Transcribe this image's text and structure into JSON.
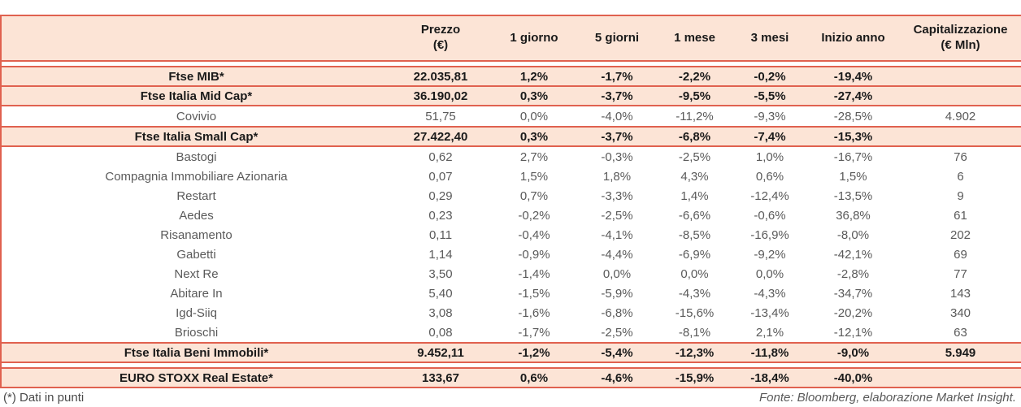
{
  "colors": {
    "row_fill": "#fce4d6",
    "line": "#e0614f",
    "index_text": "#1a1a1a",
    "stock_text": "#5a5a5a"
  },
  "table": {
    "columns": [
      {
        "label": ""
      },
      {
        "label": "Prezzo\n(€)"
      },
      {
        "label": "1 giorno"
      },
      {
        "label": "5 giorni"
      },
      {
        "label": "1 mese"
      },
      {
        "label": "3 mesi"
      },
      {
        "label": "Inizio anno"
      },
      {
        "label": "Capitalizzazione\n(€ Mln)"
      }
    ],
    "rows": [
      {
        "type": "index",
        "label": "Ftse MIB*",
        "values": [
          "22.035,81",
          "1,2%",
          "-1,7%",
          "-2,2%",
          "-0,2%",
          "-19,4%",
          ""
        ]
      },
      {
        "type": "index",
        "label": "Ftse Italia Mid Cap*",
        "values": [
          "36.190,02",
          "0,3%",
          "-3,7%",
          "-9,5%",
          "-5,5%",
          "-27,4%",
          ""
        ]
      },
      {
        "type": "stock",
        "label": "Covivio",
        "values": [
          "51,75",
          "0,0%",
          "-4,0%",
          "-11,2%",
          "-9,3%",
          "-28,5%",
          "4.902"
        ]
      },
      {
        "type": "index",
        "label": "Ftse Italia Small Cap*",
        "values": [
          "27.422,40",
          "0,3%",
          "-3,7%",
          "-6,8%",
          "-7,4%",
          "-15,3%",
          ""
        ]
      },
      {
        "type": "stock",
        "label": "Bastogi",
        "values": [
          "0,62",
          "2,7%",
          "-0,3%",
          "-2,5%",
          "1,0%",
          "-16,7%",
          "76"
        ]
      },
      {
        "type": "stock",
        "label": "Compagnia Immobiliare Azionaria",
        "values": [
          "0,07",
          "1,5%",
          "1,8%",
          "4,3%",
          "0,6%",
          "1,5%",
          "6"
        ]
      },
      {
        "type": "stock",
        "label": "Restart",
        "values": [
          "0,29",
          "0,7%",
          "-3,3%",
          "1,4%",
          "-12,4%",
          "-13,5%",
          "9"
        ]
      },
      {
        "type": "stock",
        "label": "Aedes",
        "values": [
          "0,23",
          "-0,2%",
          "-2,5%",
          "-6,6%",
          "-0,6%",
          "36,8%",
          "61"
        ]
      },
      {
        "type": "stock",
        "label": "Risanamento",
        "values": [
          "0,11",
          "-0,4%",
          "-4,1%",
          "-8,5%",
          "-16,9%",
          "-8,0%",
          "202"
        ]
      },
      {
        "type": "stock",
        "label": "Gabetti",
        "values": [
          "1,14",
          "-0,9%",
          "-4,4%",
          "-6,9%",
          "-9,2%",
          "-42,1%",
          "69"
        ]
      },
      {
        "type": "stock",
        "label": "Next Re",
        "values": [
          "3,50",
          "-1,4%",
          "0,0%",
          "0,0%",
          "0,0%",
          "-2,8%",
          "77"
        ]
      },
      {
        "type": "stock",
        "label": "Abitare In",
        "values": [
          "5,40",
          "-1,5%",
          "-5,9%",
          "-4,3%",
          "-4,3%",
          "-34,7%",
          "143"
        ]
      },
      {
        "type": "stock",
        "label": "Igd-Siiq",
        "values": [
          "3,08",
          "-1,6%",
          "-6,8%",
          "-15,6%",
          "-13,4%",
          "-20,2%",
          "340"
        ]
      },
      {
        "type": "stock",
        "label": "Brioschi",
        "values": [
          "0,08",
          "-1,7%",
          "-2,5%",
          "-8,1%",
          "2,1%",
          "-12,1%",
          "63"
        ]
      },
      {
        "type": "index",
        "label": "Ftse Italia Beni Immobili*",
        "values": [
          "9.452,11",
          "-1,2%",
          "-5,4%",
          "-12,3%",
          "-11,8%",
          "-9,0%",
          "5.949"
        ]
      },
      {
        "type": "index",
        "label": "EURO STOXX Real Estate*",
        "separated": true,
        "values": [
          "133,67",
          "0,6%",
          "-4,6%",
          "-15,9%",
          "-18,4%",
          "-40,0%",
          ""
        ]
      }
    ]
  },
  "footer": {
    "note": "(*) Dati in punti",
    "source": "Fonte: Bloomberg, elaborazione Market Insight."
  }
}
